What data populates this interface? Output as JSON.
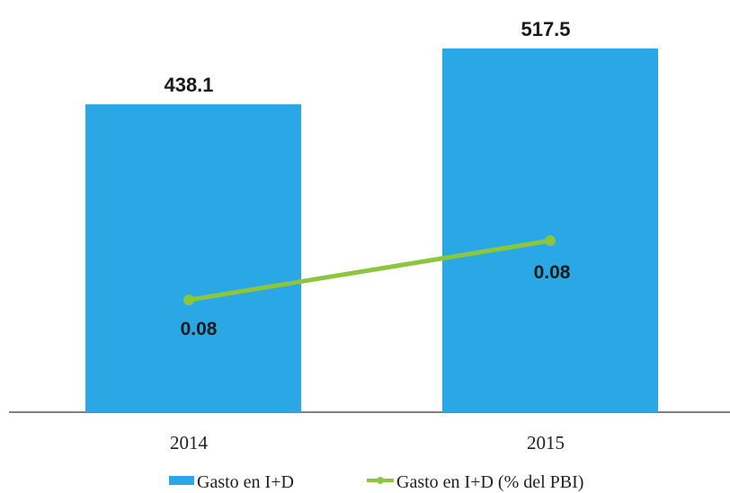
{
  "chart_data": {
    "type": "bar",
    "categories": [
      "2014",
      "2015"
    ],
    "series": [
      {
        "name": "Gasto en I+D",
        "type": "bar",
        "axis": "left",
        "values": [
          438.1,
          517.5
        ],
        "labels": [
          "438.1",
          "517.5"
        ],
        "color": "#2aa8e6"
      },
      {
        "name": "Gasto en I+D (% del PBI)",
        "type": "line",
        "axis": "right",
        "values": [
          0.08,
          0.08
        ],
        "labels": [
          "0.08",
          "0.08"
        ],
        "color": "#8cc63f"
      }
    ],
    "title": "",
    "xlabel": "",
    "ylabel": "",
    "legend_position": "bottom",
    "grid": false
  }
}
